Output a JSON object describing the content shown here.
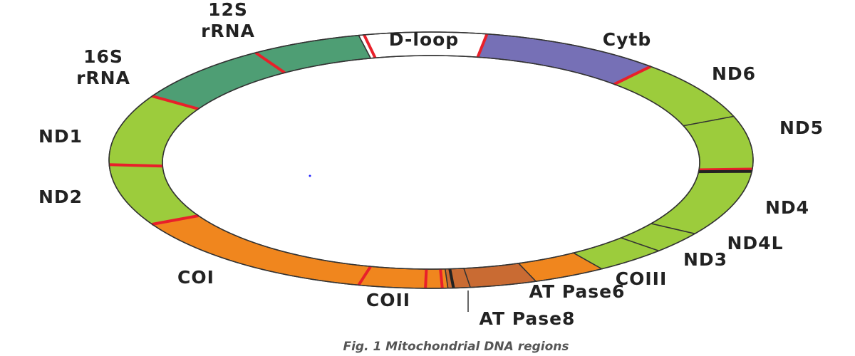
{
  "regions": [
    {
      "lines": [
        "D-loop"
      ]
    },
    {
      "lines": [
        "Cytb"
      ]
    },
    {
      "lines": [
        "ND6"
      ]
    },
    {
      "lines": [
        "ND5"
      ]
    },
    {
      "lines": [
        "ND4"
      ]
    },
    {
      "lines": [
        "ND4L"
      ]
    },
    {
      "lines": [
        "ND3"
      ]
    },
    {
      "lines": [
        "COIII"
      ]
    },
    {
      "lines": [
        "AT Pase6"
      ]
    },
    {
      "lines": [
        "AT Pase8"
      ]
    },
    {
      "lines": [
        "COII"
      ]
    },
    {
      "lines": [
        "COI"
      ]
    },
    {
      "lines": [
        "ND2"
      ]
    },
    {
      "lines": [
        "ND1"
      ]
    },
    {
      "lines": [
        "16S",
        "rRNA"
      ]
    },
    {
      "lines": [
        "12S",
        "rRNA"
      ]
    }
  ],
  "caption": "Fig. 1 Mitochondrial DNA regions"
}
